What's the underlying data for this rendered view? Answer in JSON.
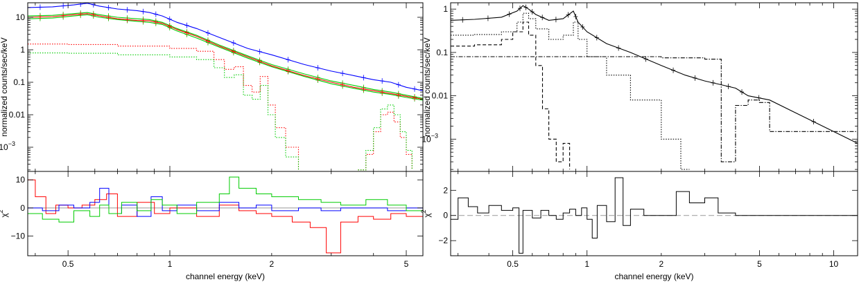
{
  "chart_data": [
    {
      "type": "line",
      "panel": "left-top",
      "ylabel": "normalized counts/sec/keV",
      "xscale": "log",
      "yscale": "log",
      "xlim": [
        0.38,
        5.6
      ],
      "ylim": [
        0.00018,
        28
      ],
      "y_tick_labels": [
        {
          "v": 10,
          "t": "10"
        },
        {
          "v": 1,
          "t": "1"
        },
        {
          "v": 0.1,
          "t": "0.1"
        },
        {
          "v": 0.01,
          "t": "0.01"
        },
        {
          "v": 0.001,
          "t": "10",
          "sup": "−3"
        }
      ],
      "series": [
        {
          "color": "#0000ff",
          "style": "solid",
          "x": [
            0.38,
            0.45,
            0.52,
            0.57,
            0.62,
            0.7,
            0.8,
            0.87,
            0.95,
            1.05,
            1.2,
            1.4,
            1.7,
            2.0,
            2.5,
            3.0,
            3.5,
            4.0,
            4.5,
            5.0,
            5.6
          ],
          "y": [
            20,
            21,
            24,
            27,
            22,
            18,
            16,
            14,
            11,
            7,
            4.5,
            2.4,
            1.1,
            0.7,
            0.35,
            0.22,
            0.16,
            0.12,
            0.1,
            0.07,
            0.055
          ]
        },
        {
          "color": "#00cc00",
          "style": "solid",
          "x": [
            0.38,
            0.45,
            0.52,
            0.57,
            0.62,
            0.7,
            0.8,
            0.87,
            0.95,
            1.05,
            1.2,
            1.4,
            1.7,
            2.0,
            2.5,
            3.0,
            3.5,
            4.0,
            4.5,
            5.0,
            5.6
          ],
          "y": [
            11,
            11.5,
            13,
            14,
            12,
            10,
            9,
            8.5,
            7,
            4.5,
            2.8,
            1.4,
            0.65,
            0.35,
            0.18,
            0.11,
            0.08,
            0.06,
            0.05,
            0.04,
            0.032
          ]
        },
        {
          "color": "#00cc00",
          "style": "solid",
          "x": [
            0.38,
            0.45,
            0.52,
            0.57,
            0.62,
            0.7,
            0.8,
            0.87,
            0.95,
            1.05,
            1.2,
            1.4,
            1.7,
            2.0,
            2.5,
            3.0,
            3.5,
            4.0,
            4.5,
            5.0,
            5.6
          ],
          "y": [
            9,
            9.5,
            11,
            12,
            10,
            8.5,
            7.5,
            7,
            6,
            3.8,
            2.3,
            1.2,
            0.55,
            0.3,
            0.15,
            0.09,
            0.065,
            0.05,
            0.042,
            0.034,
            0.028
          ]
        },
        {
          "color": "#ff0000",
          "style": "solid",
          "x": [
            0.38,
            0.45,
            0.52,
            0.57,
            0.62,
            0.7,
            0.8,
            0.87,
            0.95,
            1.05,
            1.2,
            1.4,
            1.7,
            2.0,
            2.5,
            3.0,
            3.5,
            4.0,
            4.5,
            5.0,
            5.6
          ],
          "y": [
            10,
            10.5,
            12,
            13,
            11,
            9,
            8,
            7.8,
            6.5,
            4.2,
            2.6,
            1.3,
            0.6,
            0.32,
            0.16,
            0.1,
            0.07,
            0.055,
            0.045,
            0.037,
            0.03
          ]
        },
        {
          "color": "#ff0000",
          "style": "dotted",
          "x": [
            0.38,
            0.5,
            0.7,
            1.0,
            1.2,
            1.35,
            1.45,
            1.55,
            1.65,
            1.75,
            1.85,
            1.95,
            2.05,
            2.2,
            2.4
          ],
          "y": [
            1.5,
            1.45,
            1.3,
            1.1,
            0.9,
            0.5,
            0.25,
            0.3,
            0.08,
            0.05,
            0.15,
            0.02,
            0.004,
            0.001,
            0.0002
          ]
        },
        {
          "color": "#00cc00",
          "style": "dotted",
          "x": [
            0.38,
            0.5,
            0.7,
            1.0,
            1.2,
            1.35,
            1.45,
            1.55,
            1.65,
            1.75,
            1.85,
            1.95,
            2.05,
            2.2,
            2.4
          ],
          "y": [
            0.8,
            0.78,
            0.7,
            0.6,
            0.5,
            0.28,
            0.14,
            0.17,
            0.04,
            0.03,
            0.08,
            0.01,
            0.002,
            0.0005,
            0.0002
          ]
        },
        {
          "color": "#ff0000",
          "style": "dotted",
          "x": [
            3.6,
            3.8,
            4.0,
            4.2,
            4.4,
            4.6,
            4.8,
            5.0,
            5.2
          ],
          "y": [
            0.0002,
            0.0006,
            0.003,
            0.01,
            0.012,
            0.006,
            0.002,
            0.0006,
            0.0002
          ]
        },
        {
          "color": "#00cc00",
          "style": "dotted",
          "x": [
            3.6,
            3.8,
            4.0,
            4.2,
            4.4,
            4.6,
            4.8,
            5.0,
            5.2
          ],
          "y": [
            0.0002,
            0.0008,
            0.004,
            0.015,
            0.02,
            0.01,
            0.003,
            0.0008,
            0.0002
          ]
        }
      ]
    },
    {
      "type": "line",
      "panel": "left-bottom",
      "ylabel": "χ",
      "ylabel_sup": "2",
      "xlabel": "channel energy (keV)",
      "xscale": "log",
      "xlim": [
        0.38,
        5.6
      ],
      "ylim": [
        -17,
        13
      ],
      "x_tick_labels": [
        {
          "v": 0.5,
          "t": "0.5"
        },
        {
          "v": 1,
          "t": "1"
        },
        {
          "v": 2,
          "t": "2"
        },
        {
          "v": 5,
          "t": "5"
        }
      ],
      "y_tick_labels": [
        {
          "v": 10,
          "t": "10"
        },
        {
          "v": 0,
          "t": "0"
        },
        {
          "v": -10,
          "t": "−10"
        }
      ],
      "series": [
        {
          "color": "#ff0000",
          "x": [
            0.38,
            0.4,
            0.43,
            0.46,
            0.5,
            0.55,
            0.6,
            0.65,
            0.7,
            0.8,
            0.9,
            1.0,
            1.2,
            1.4,
            1.6,
            1.8,
            2.0,
            2.3,
            2.6,
            2.9,
            3.2,
            3.6,
            4.0,
            4.5,
            5.0,
            5.6
          ],
          "y": [
            10,
            4,
            -2,
            1,
            0,
            1,
            3,
            5,
            -3,
            2,
            -2,
            0,
            -3,
            1,
            -1,
            -2,
            -3,
            -5,
            -7,
            -16,
            -5,
            -3,
            -4,
            -2,
            -3,
            -1
          ]
        },
        {
          "color": "#0000ff",
          "x": [
            0.38,
            0.42,
            0.47,
            0.52,
            0.58,
            0.62,
            0.66,
            0.72,
            0.8,
            0.88,
            0.95,
            1.05,
            1.2,
            1.4,
            1.6,
            1.8,
            2.0,
            2.4,
            2.8,
            3.2,
            3.8,
            4.4,
            5.0,
            5.6
          ],
          "y": [
            0,
            -1,
            1,
            0,
            2,
            7,
            -2,
            1,
            -3,
            4,
            -1,
            1,
            -1,
            2,
            0,
            1,
            -1,
            0,
            -1,
            0,
            0,
            -1,
            0,
            1
          ]
        },
        {
          "color": "#00cc00",
          "x": [
            0.38,
            0.42,
            0.47,
            0.52,
            0.58,
            0.62,
            0.66,
            0.72,
            0.8,
            0.88,
            0.95,
            1.05,
            1.2,
            1.4,
            1.5,
            1.6,
            1.8,
            2.0,
            2.4,
            2.8,
            3.2,
            3.8,
            4.4,
            5.0,
            5.6
          ],
          "y": [
            -2,
            -4,
            -5,
            -1,
            -3,
            1,
            -2,
            2,
            -1,
            3,
            1,
            -2,
            2,
            5,
            11,
            7,
            5,
            4,
            3,
            2,
            1,
            3,
            1,
            -1,
            0
          ]
        }
      ]
    },
    {
      "type": "line",
      "panel": "right-top",
      "ylabel": "normalized counts/sec/keV",
      "xscale": "log",
      "yscale": "log",
      "xlim": [
        0.28,
        12.5
      ],
      "ylim": [
        0.00018,
        1.4
      ],
      "y_tick_labels": [
        {
          "v": 1,
          "t": "1"
        },
        {
          "v": 0.1,
          "t": "0.1"
        },
        {
          "v": 0.01,
          "t": "0.01"
        },
        {
          "v": 0.001,
          "t": "10",
          "sup": "−3"
        }
      ],
      "series": [
        {
          "name": "",
          "color": "#000000",
          "style": "solid",
          "x": [
            0.28,
            0.35,
            0.45,
            0.52,
            0.55,
            0.58,
            0.62,
            0.7,
            0.8,
            0.88,
            0.92,
            1.0,
            1.2,
            1.5,
            2.0,
            2.5,
            3.0,
            3.5,
            4.0,
            4.5,
            5.5,
            12.5
          ],
          "y": [
            0.55,
            0.58,
            0.65,
            0.9,
            1.2,
            1.0,
            0.75,
            0.55,
            0.6,
            0.9,
            0.5,
            0.3,
            0.16,
            0.1,
            0.05,
            0.03,
            0.022,
            0.018,
            0.015,
            0.01,
            0.008,
            0.0008
          ]
        },
        {
          "name": "",
          "color": "#000000",
          "style": "dotted",
          "x": [
            0.28,
            0.35,
            0.45,
            0.52,
            0.55,
            0.58,
            0.62,
            0.7,
            0.8,
            0.88,
            0.92,
            1.0,
            1.2,
            1.5,
            2.0,
            2.4,
            2.6
          ],
          "y": [
            0.25,
            0.26,
            0.3,
            0.5,
            0.8,
            0.6,
            0.35,
            0.2,
            0.25,
            0.5,
            0.2,
            0.08,
            0.03,
            0.008,
            0.001,
            0.0002,
            0.0002
          ]
        },
        {
          "name": "",
          "color": "#000000",
          "style": "dashed",
          "x": [
            0.28,
            0.35,
            0.45,
            0.5,
            0.55,
            0.58,
            0.62,
            0.66,
            0.7,
            0.75,
            0.8,
            0.85
          ],
          "y": [
            0.14,
            0.15,
            0.2,
            0.3,
            0.5,
            0.25,
            0.05,
            0.005,
            0.001,
            0.0003,
            0.0008,
            0.0002
          ]
        },
        {
          "name": "",
          "color": "#000000",
          "style": "dashdot",
          "x": [
            0.28,
            1.0,
            2.0,
            3.0,
            3.5,
            4.0,
            4.5,
            5.0,
            5.5,
            12.5
          ],
          "y": [
            0.08,
            0.08,
            0.075,
            0.07,
            0.0003,
            0.006,
            0.008,
            0.007,
            0.0015,
            0.0008
          ]
        }
      ]
    },
    {
      "type": "line",
      "panel": "right-bottom",
      "ylabel": "χ",
      "ylabel_sup": "2",
      "xlabel": "channel energy (keV)",
      "xscale": "log",
      "xlim": [
        0.28,
        12.5
      ],
      "ylim": [
        -3.2,
        3.5
      ],
      "x_tick_labels": [
        {
          "v": 0.5,
          "t": "0.5"
        },
        {
          "v": 1,
          "t": "1"
        },
        {
          "v": 2,
          "t": "2"
        },
        {
          "v": 5,
          "t": "5"
        },
        {
          "v": 10,
          "t": "10"
        }
      ],
      "y_tick_labels": [
        {
          "v": 2,
          "t": "2"
        },
        {
          "v": 0,
          "t": "0"
        },
        {
          "v": -2,
          "t": "−2"
        }
      ],
      "series": [
        {
          "color": "#000000",
          "x": [
            0.28,
            0.3,
            0.33,
            0.36,
            0.4,
            0.45,
            0.5,
            0.53,
            0.55,
            0.6,
            0.65,
            0.7,
            0.75,
            0.8,
            0.85,
            0.9,
            0.95,
            1.0,
            1.05,
            1.1,
            1.2,
            1.3,
            1.4,
            1.5,
            1.7,
            2.0,
            2.3,
            2.6,
            3.0,
            3.4,
            4.0,
            5.5,
            12.5
          ],
          "y": [
            -0.3,
            1.4,
            0.7,
            0.2,
            0.8,
            0.4,
            0.6,
            -3.0,
            0.4,
            -0.2,
            0.4,
            0.0,
            -0.3,
            0.2,
            0.5,
            0.0,
            0.6,
            -0.3,
            -1.8,
            0.8,
            -0.5,
            3.0,
            -0.8,
            0.5,
            0.0,
            0.0,
            1.9,
            1.0,
            1.4,
            0.2,
            0.0,
            0.0,
            0.0
          ]
        }
      ]
    }
  ]
}
